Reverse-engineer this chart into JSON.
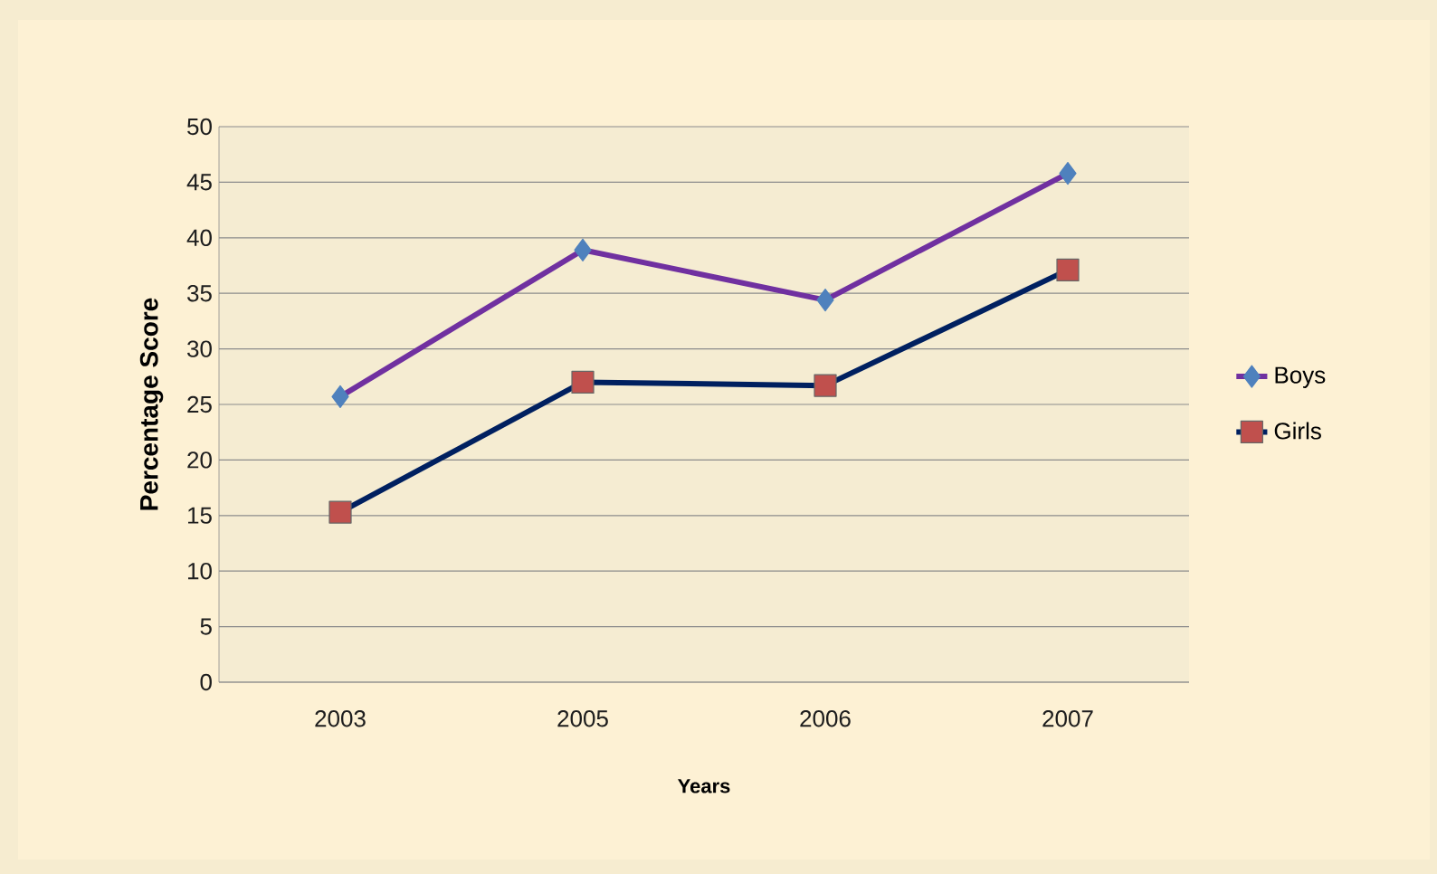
{
  "chart_data": {
    "type": "line",
    "xlabel": "Years",
    "ylabel": "Percentage Score",
    "categories": [
      "2003",
      "2005",
      "2006",
      "2007"
    ],
    "series": [
      {
        "name": "Boys",
        "color": "#7030a0",
        "marker": "diamond",
        "colors": [
          "#4f81bd",
          "#4f81bd",
          "#4f81bd",
          "#4f81bd"
        ],
        "values": [
          25.7,
          38.9,
          34.4,
          45.8
        ]
      },
      {
        "name": "Girls",
        "color": "#002060",
        "marker": "square",
        "colors": [
          "#c0504d",
          "#c0504d",
          "#c0504d",
          "#c0504d"
        ],
        "values": [
          15.3,
          27.0,
          26.7,
          37.1
        ]
      }
    ],
    "ylim": [
      0,
      50
    ],
    "yticks": [
      0,
      5,
      10,
      15,
      20,
      25,
      30,
      35,
      40,
      45,
      50
    ],
    "grid": "y",
    "legend": "right"
  }
}
